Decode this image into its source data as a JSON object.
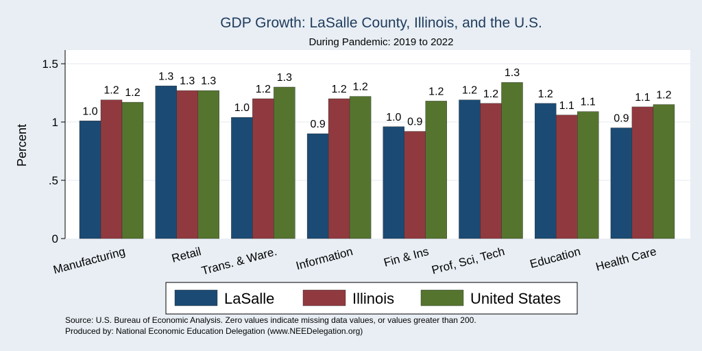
{
  "chart_data": {
    "type": "bar",
    "title": "GDP Growth: LaSalle County, Illinois, and the U.S.",
    "subtitle": "During Pandemic: 2019 to 2022",
    "ylabel": "Percent",
    "xlabel": "",
    "ylim": [
      0,
      1.6
    ],
    "yticks": [
      0,
      0.5,
      1,
      1.5
    ],
    "ytick_labels": [
      "0",
      ".5",
      "1",
      "1.5"
    ],
    "grid": true,
    "legend_position": "bottom",
    "categories": [
      "Manufacturing",
      "Retail",
      "Trans. & Ware.",
      "Information",
      "Fin & Ins",
      "Prof, Sci, Tech",
      "Education",
      "Health Care"
    ],
    "series": [
      {
        "name": "LaSalle",
        "color": "#1b4b74",
        "values": [
          1.01,
          1.31,
          1.04,
          0.9,
          0.96,
          1.19,
          1.16,
          0.95
        ],
        "labels": [
          "1.0",
          "1.3",
          "1.0",
          "0.9",
          "1.0",
          "1.2",
          "1.2",
          "0.9"
        ]
      },
      {
        "name": "Illinois",
        "color": "#903a3f",
        "values": [
          1.19,
          1.27,
          1.2,
          1.2,
          0.92,
          1.16,
          1.06,
          1.13
        ],
        "labels": [
          "1.2",
          "1.3",
          "1.2",
          "1.2",
          "0.9",
          "1.2",
          "1.1",
          "1.1"
        ]
      },
      {
        "name": "United States",
        "color": "#55752f",
        "values": [
          1.17,
          1.27,
          1.3,
          1.22,
          1.18,
          1.34,
          1.09,
          1.15
        ],
        "labels": [
          "1.2",
          "1.3",
          "1.3",
          "1.2",
          "1.2",
          "1.3",
          "1.1",
          "1.2"
        ]
      }
    ],
    "notes": [
      "Source: U.S. Bureau of Economic Analysis. Zero values indicate missing data values, or values greater than 200.",
      "Produced by: National Economic Education Delegation (www.NEEDelegation.org)"
    ]
  }
}
